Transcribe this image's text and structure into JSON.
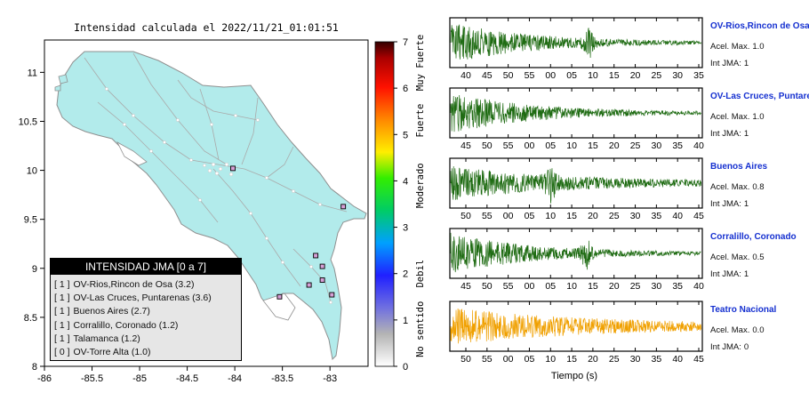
{
  "map": {
    "title": "Intensidad calculada el 2022/11/21_01:01:51",
    "x_ticks": [
      "-86",
      "-85.5",
      "-85",
      "-84.5",
      "-84",
      "-83.5",
      "-83"
    ],
    "y_ticks": [
      "11",
      "10.5",
      "10",
      "9.5",
      "9",
      "8.5",
      "8"
    ],
    "stations": [
      {
        "lon": -84.02,
        "lat": 10.02
      },
      {
        "lon": -82.86,
        "lat": 9.63
      },
      {
        "lon": -83.15,
        "lat": 9.13
      },
      {
        "lon": -83.08,
        "lat": 9.02
      },
      {
        "lon": -83.08,
        "lat": 8.88
      },
      {
        "lon": -83.22,
        "lat": 8.83
      },
      {
        "lon": -82.98,
        "lat": 8.73
      },
      {
        "lon": -83.53,
        "lat": 8.71
      }
    ]
  },
  "colorbar": {
    "tick_values": [
      "0",
      "1",
      "2",
      "3",
      "4",
      "5",
      "6",
      "7"
    ],
    "band_labels": [
      "No sentido",
      "Debil",
      "Moderado",
      "Fuerte",
      "Muy Fuerte"
    ]
  },
  "legend": {
    "title": "INTENSIDAD JMA [0 a 7]",
    "items": [
      {
        "jma": "[ 1 ]",
        "label": "OV-Rios,Rincon de Osa (3.2)"
      },
      {
        "jma": "[ 1 ]",
        "label": "OV-Las Cruces, Puntarenas (3.6)"
      },
      {
        "jma": "[ 1 ]",
        "label": "Buenos Aires (2.7)"
      },
      {
        "jma": "[ 1 ]",
        "label": "Corralillo, Coronado (1.2)"
      },
      {
        "jma": "[ 1 ]",
        "label": "Talamanca (1.2)"
      },
      {
        "jma": "[ 0 ]",
        "label": "OV-Torre Alta (1.0)"
      }
    ]
  },
  "waveforms": {
    "xlabel": "Tiempo (s)",
    "accel_label": "Acel. Max.",
    "jma_label": "Int JMA:",
    "panels": [
      {
        "station": "OV-Rios,Rincon de Osa",
        "accel": "1.0",
        "jma": "1",
        "color": "#1e6b12",
        "ticks": [
          "40",
          "45",
          "50",
          "55",
          "00",
          "05",
          "10",
          "15",
          "20",
          "25",
          "30",
          "35"
        ],
        "burst": 0.55
      },
      {
        "station": "OV-Las Cruces, Puntarenas",
        "accel": "1.0",
        "jma": "1",
        "color": "#1e6b12",
        "ticks": [
          "45",
          "50",
          "55",
          "00",
          "05",
          "10",
          "15",
          "20",
          "25",
          "30",
          "35",
          "40"
        ],
        "burst": 0
      },
      {
        "station": "Buenos Aires",
        "accel": "0.8",
        "jma": "1",
        "color": "#1e6b12",
        "ticks": [
          "50",
          "55",
          "00",
          "05",
          "10",
          "15",
          "20",
          "25",
          "30",
          "35",
          "40",
          "45"
        ],
        "burst": 0.4
      },
      {
        "station": "Corralillo, Coronado",
        "accel": "0.5",
        "jma": "1",
        "color": "#1e6b12",
        "ticks": [
          "45",
          "50",
          "55",
          "00",
          "05",
          "10",
          "15",
          "20",
          "25",
          "30",
          "35",
          "40"
        ],
        "burst": 0.54
      },
      {
        "station": "Teatro Nacional",
        "accel": "0.0",
        "jma": "0",
        "color": "#f0a000",
        "ticks": [
          "50",
          "55",
          "00",
          "05",
          "10",
          "15",
          "20",
          "25",
          "30",
          "35",
          "40",
          "45"
        ],
        "burst": 0
      }
    ]
  }
}
